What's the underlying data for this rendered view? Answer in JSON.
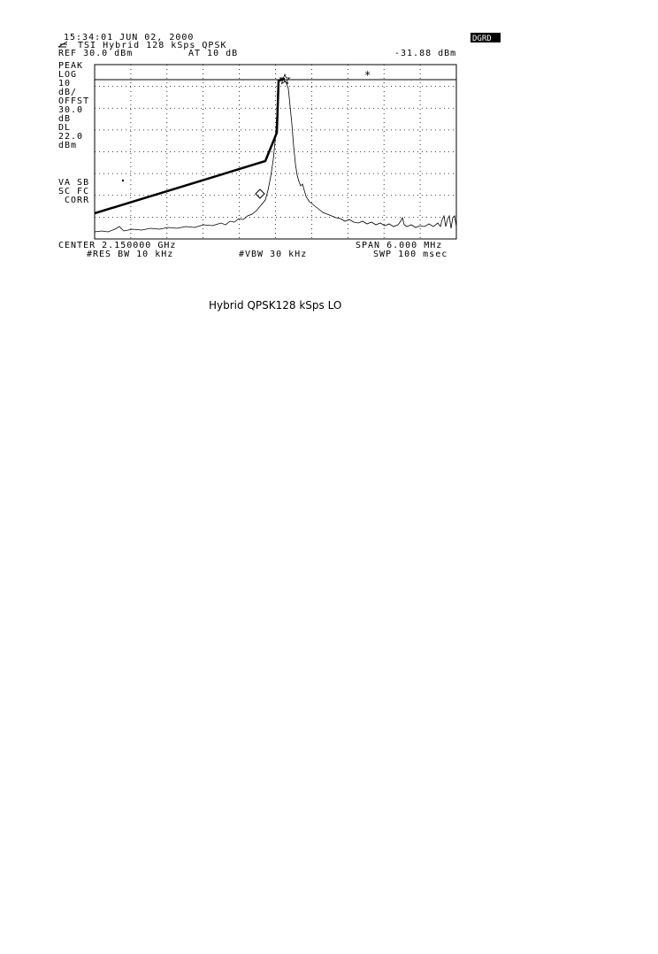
{
  "header": {
    "time": "15:34:01 JUN 02, 2000",
    "title": "TSI Hybrid 128 kSps QPSK",
    "ref": "REF 30.0 dBm",
    "atten": "AT 10 dB",
    "marker_readout": "-31.88 dBm",
    "status": "DGRD"
  },
  "left_annotations": [
    "PEAK",
    "LOG",
    "10",
    "dB/",
    "OFFST",
    "30.0",
    "dB",
    "DL",
    "22.0",
    "dBm"
  ],
  "lower_annotations": [
    "VA SB",
    "SC FC",
    " CORR"
  ],
  "footer": {
    "center": "CENTER 2.150000 GHz",
    "span": "SPAN 6.000 MHz",
    "rbw": "#RES BW 10 kHz",
    "vbw": "#VBW 30 kHz",
    "sweep": "SWP 100 msec"
  },
  "caption": "Hybrid  QPSK128 kSps LO"
}
